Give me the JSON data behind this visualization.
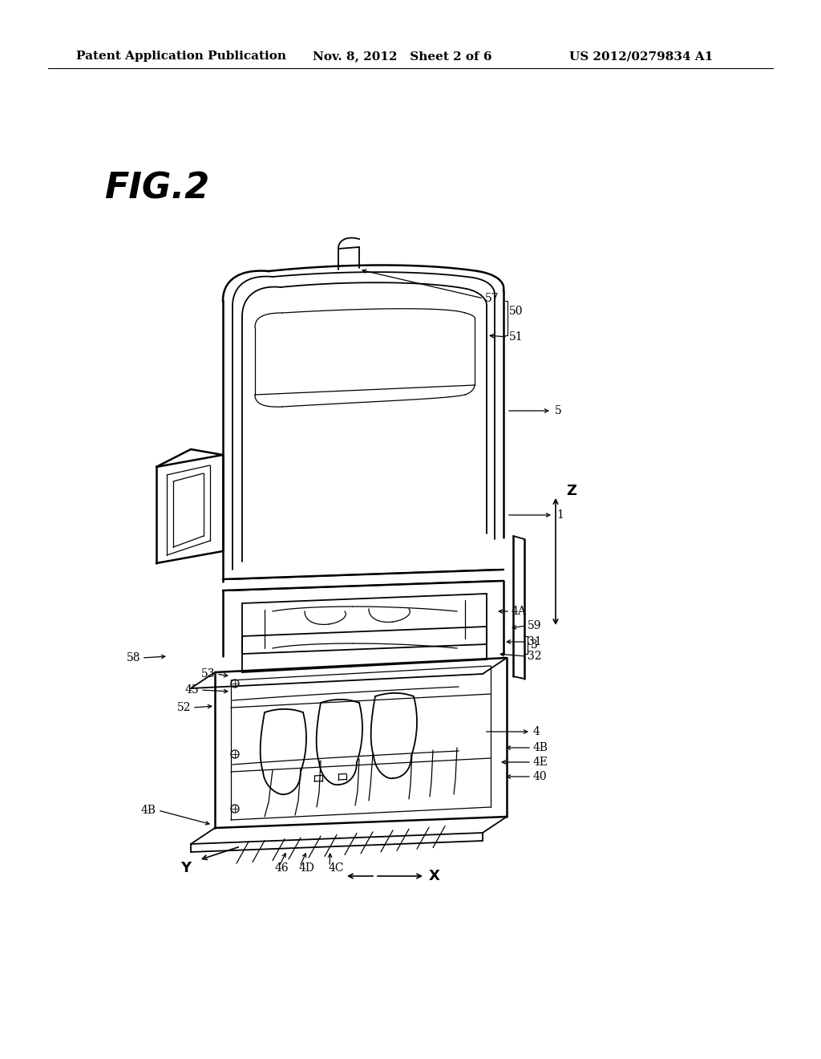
{
  "bg_color": "#ffffff",
  "header_left": "Patent Application Publication",
  "header_mid": "Nov. 8, 2012   Sheet 2 of 6",
  "header_right": "US 2012/0279834 A1",
  "fig_label": "FIG.2",
  "header_fontsize": 11,
  "fig_label_fontsize": 32
}
